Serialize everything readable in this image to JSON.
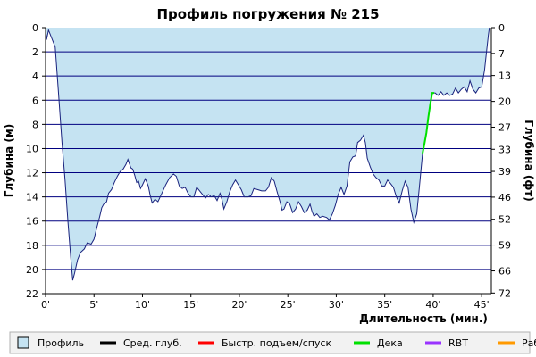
{
  "chart_data": {
    "type": "area",
    "title": "Профиль погружения № 215",
    "xlabel": "Длительность (мин.)",
    "ylabel_left": "Глубина (м)",
    "ylabel_right": "Глубина (фт)",
    "xlim": [
      0,
      46
    ],
    "ylim_m": [
      0,
      22
    ],
    "y_inverted": true,
    "grid": true,
    "x_ticks": [
      0,
      5,
      10,
      15,
      20,
      25,
      30,
      35,
      40,
      45
    ],
    "x_tick_labels": [
      "0'",
      "5'",
      "10'",
      "15'",
      "20'",
      "25'",
      "30'",
      "35'",
      "40'",
      "45'"
    ],
    "y_left_ticks": [
      0,
      2,
      4,
      6,
      8,
      10,
      12,
      14,
      16,
      18,
      20,
      22
    ],
    "y_left_tick_labels": [
      "0",
      "2",
      "4",
      "6",
      "8",
      "10",
      "12",
      "14",
      "16",
      "18",
      "20",
      "22"
    ],
    "y_right_ticks_m": [
      0,
      2.13,
      3.96,
      6.1,
      8.23,
      10.06,
      11.89,
      14.02,
      15.85,
      17.98,
      20.12,
      21.95
    ],
    "y_right_tick_labels": [
      "0",
      "7",
      "13",
      "20",
      "27",
      "33",
      "39",
      "46",
      "52",
      "59",
      "66",
      "72"
    ],
    "colors": {
      "profile_fill": "#c5e3f2",
      "profile_line": "#1a237e",
      "deco": "#00e000",
      "grid": "#000080",
      "background": "#ffffff"
    },
    "series": [
      {
        "name": "Профиль",
        "kind": "depth",
        "points": [
          [
            0,
            0
          ],
          [
            0.1,
            1.0
          ],
          [
            0.3,
            0.2
          ],
          [
            0.8,
            1.2
          ],
          [
            1.0,
            1.6
          ],
          [
            1.3,
            5
          ],
          [
            1.7,
            9.5
          ],
          [
            2.0,
            12.5
          ],
          [
            2.3,
            16
          ],
          [
            2.6,
            19
          ],
          [
            2.8,
            20.9
          ],
          [
            3.0,
            20.3
          ],
          [
            3.3,
            19.2
          ],
          [
            3.6,
            18.6
          ],
          [
            4.0,
            18.3
          ],
          [
            4.3,
            17.8
          ],
          [
            4.7,
            17.9
          ],
          [
            5.0,
            17.5
          ],
          [
            5.3,
            16.5
          ],
          [
            5.6,
            15.6
          ],
          [
            5.8,
            14.9
          ],
          [
            6.0,
            14.6
          ],
          [
            6.3,
            14.4
          ],
          [
            6.5,
            13.7
          ],
          [
            6.8,
            13.4
          ],
          [
            7.1,
            12.8
          ],
          [
            7.4,
            12.3
          ],
          [
            7.7,
            11.9
          ],
          [
            8.0,
            11.7
          ],
          [
            8.3,
            11.3
          ],
          [
            8.5,
            10.9
          ],
          [
            8.8,
            11.6
          ],
          [
            9.0,
            11.7
          ],
          [
            9.2,
            12.2
          ],
          [
            9.4,
            12.8
          ],
          [
            9.6,
            12.7
          ],
          [
            9.8,
            13.3
          ],
          [
            10.0,
            13.0
          ],
          [
            10.3,
            12.5
          ],
          [
            10.6,
            13.1
          ],
          [
            10.8,
            13.9
          ],
          [
            11.0,
            14.5
          ],
          [
            11.3,
            14.2
          ],
          [
            11.6,
            14.4
          ],
          [
            12.0,
            13.7
          ],
          [
            12.4,
            13.0
          ],
          [
            12.8,
            12.4
          ],
          [
            13.2,
            12.1
          ],
          [
            13.5,
            12.3
          ],
          [
            13.8,
            13.1
          ],
          [
            14.1,
            13.3
          ],
          [
            14.4,
            13.2
          ],
          [
            14.7,
            13.7
          ],
          [
            15.0,
            14.0
          ],
          [
            15.3,
            14.0
          ],
          [
            15.6,
            13.2
          ],
          [
            15.9,
            13.5
          ],
          [
            16.2,
            13.8
          ],
          [
            16.5,
            14.1
          ],
          [
            16.8,
            13.8
          ],
          [
            17.1,
            14.0
          ],
          [
            17.4,
            13.9
          ],
          [
            17.7,
            14.3
          ],
          [
            18.0,
            13.7
          ],
          [
            18.2,
            14.2
          ],
          [
            18.4,
            15.0
          ],
          [
            18.7,
            14.4
          ],
          [
            19.0,
            13.6
          ],
          [
            19.3,
            13.0
          ],
          [
            19.6,
            12.6
          ],
          [
            19.9,
            13.0
          ],
          [
            20.2,
            13.4
          ],
          [
            20.5,
            14.0
          ],
          [
            20.9,
            14.0
          ],
          [
            21.2,
            13.9
          ],
          [
            21.5,
            13.3
          ],
          [
            21.9,
            13.4
          ],
          [
            22.3,
            13.5
          ],
          [
            22.7,
            13.5
          ],
          [
            23.0,
            13.2
          ],
          [
            23.3,
            12.4
          ],
          [
            23.6,
            12.7
          ],
          [
            23.9,
            13.6
          ],
          [
            24.2,
            14.4
          ],
          [
            24.4,
            15.1
          ],
          [
            24.6,
            15.0
          ],
          [
            24.9,
            14.4
          ],
          [
            25.2,
            14.6
          ],
          [
            25.5,
            15.3
          ],
          [
            25.8,
            15.0
          ],
          [
            26.1,
            14.4
          ],
          [
            26.4,
            14.8
          ],
          [
            26.7,
            15.3
          ],
          [
            27.0,
            15.1
          ],
          [
            27.3,
            14.6
          ],
          [
            27.5,
            15.2
          ],
          [
            27.7,
            15.6
          ],
          [
            28.0,
            15.4
          ],
          [
            28.3,
            15.7
          ],
          [
            28.6,
            15.6
          ],
          [
            29.0,
            15.7
          ],
          [
            29.3,
            15.9
          ],
          [
            29.6,
            15.4
          ],
          [
            29.9,
            14.7
          ],
          [
            30.2,
            13.8
          ],
          [
            30.5,
            13.2
          ],
          [
            30.8,
            13.8
          ],
          [
            31.1,
            13.1
          ],
          [
            31.4,
            11.1
          ],
          [
            31.7,
            10.7
          ],
          [
            32.0,
            10.6
          ],
          [
            32.2,
            9.5
          ],
          [
            32.5,
            9.3
          ],
          [
            32.8,
            8.9
          ],
          [
            33.0,
            9.5
          ],
          [
            33.2,
            10.8
          ],
          [
            33.5,
            11.5
          ],
          [
            33.8,
            12.1
          ],
          [
            34.1,
            12.4
          ],
          [
            34.4,
            12.6
          ],
          [
            34.7,
            13.1
          ],
          [
            35.0,
            13.1
          ],
          [
            35.3,
            12.6
          ],
          [
            35.6,
            12.9
          ],
          [
            35.9,
            13.2
          ],
          [
            36.2,
            14.0
          ],
          [
            36.5,
            14.5
          ],
          [
            36.8,
            13.5
          ],
          [
            37.1,
            12.7
          ],
          [
            37.4,
            13.2
          ],
          [
            37.7,
            15.0
          ],
          [
            38.0,
            16.1
          ],
          [
            38.3,
            15.4
          ],
          [
            38.6,
            13.0
          ],
          [
            38.9,
            10.4
          ],
          [
            39.1,
            9.6
          ],
          [
            39.3,
            8.7
          ],
          [
            39.5,
            7.4
          ],
          [
            39.7,
            6.3
          ],
          [
            39.9,
            5.4
          ],
          [
            40.2,
            5.4
          ],
          [
            40.5,
            5.6
          ],
          [
            40.8,
            5.3
          ],
          [
            41.1,
            5.6
          ],
          [
            41.4,
            5.4
          ],
          [
            41.7,
            5.6
          ],
          [
            42.0,
            5.5
          ],
          [
            42.3,
            5.0
          ],
          [
            42.6,
            5.4
          ],
          [
            42.9,
            5.1
          ],
          [
            43.2,
            4.9
          ],
          [
            43.5,
            5.3
          ],
          [
            43.8,
            4.4
          ],
          [
            44.1,
            5.1
          ],
          [
            44.4,
            5.4
          ],
          [
            44.7,
            5.0
          ],
          [
            45.0,
            4.9
          ],
          [
            45.3,
            3.5
          ],
          [
            45.5,
            2.0
          ],
          [
            45.7,
            0.6
          ],
          [
            45.8,
            0
          ]
        ]
      },
      {
        "name": "Дека",
        "kind": "deco",
        "points": [
          [
            38.9,
            10.4
          ],
          [
            39.1,
            9.6
          ],
          [
            39.3,
            8.7
          ],
          [
            39.5,
            7.4
          ],
          [
            39.7,
            6.3
          ],
          [
            39.9,
            5.4
          ],
          [
            40.1,
            5.4
          ]
        ]
      }
    ],
    "legend": {
      "position": "bottom",
      "items": [
        {
          "label": "Профиль",
          "marker": "box",
          "color": "#c5e3f2"
        },
        {
          "label": "Сред. глуб.",
          "marker": "line",
          "color": "#000000"
        },
        {
          "label": "Быстр. подъем/спуск",
          "marker": "line",
          "color": "#ff0000"
        },
        {
          "label": "Дека",
          "marker": "line",
          "color": "#00e000"
        },
        {
          "label": "RBT",
          "marker": "line",
          "color": "#9933ff"
        },
        {
          "label": "Раб.",
          "marker": "line",
          "color": "#ff9900"
        }
      ]
    }
  }
}
